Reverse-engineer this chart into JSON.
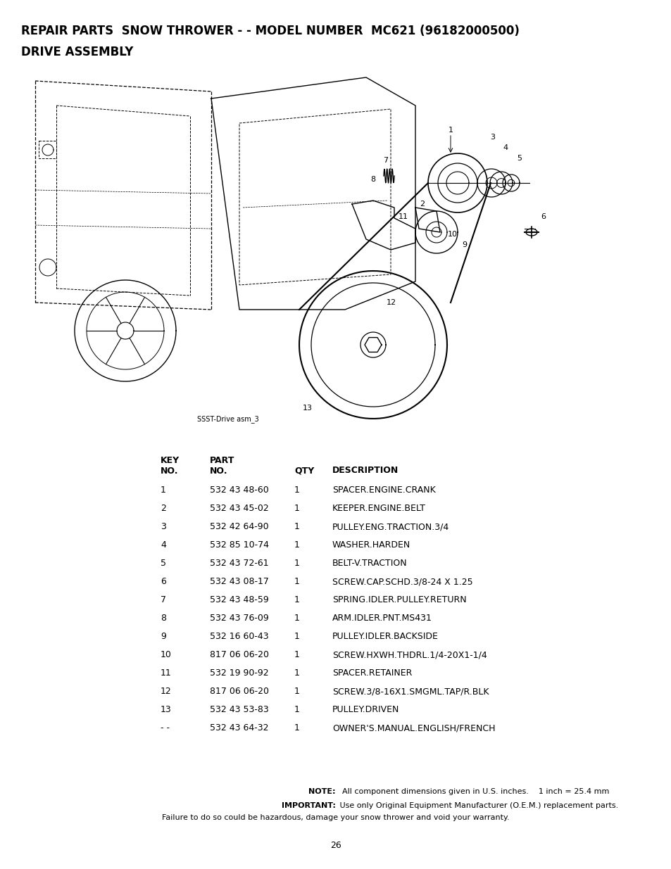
{
  "title_line1": "REPAIR PARTS  SNOW THROWER - - MODEL NUMBER  MC621 (96182000500)",
  "title_line2": "DRIVE ASSEMBLY",
  "page_number": "26",
  "diagram_label": "SSST-Drive asm_3",
  "table_rows": [
    [
      "1",
      "532 43 48-60",
      "1",
      "SPACER.ENGINE.CRANK"
    ],
    [
      "2",
      "532 43 45-02",
      "1",
      "KEEPER.ENGINE.BELT"
    ],
    [
      "3",
      "532 42 64-90",
      "1",
      "PULLEY.ENG.TRACTION.3/4"
    ],
    [
      "4",
      "532 85 10-74",
      "1",
      "WASHER.HARDEN"
    ],
    [
      "5",
      "532 43 72-61",
      "1",
      "BELT-V.TRACTION"
    ],
    [
      "6",
      "532 43 08-17",
      "1",
      "SCREW.CAP.SCHD.3/8-24 X 1.25"
    ],
    [
      "7",
      "532 43 48-59",
      "1",
      "SPRING.IDLER.PULLEY.RETURN"
    ],
    [
      "8",
      "532 43 76-09",
      "1",
      "ARM.IDLER.PNT.MS431"
    ],
    [
      "9",
      "532 16 60-43",
      "1",
      "PULLEY.IDLER.BACKSIDE"
    ],
    [
      "10",
      "817 06 06-20",
      "1",
      "SCREW.HXWH.THDRL.1/4-20X1-1/4"
    ],
    [
      "11",
      "532 19 90-92",
      "1",
      "SPACER.RETAINER"
    ],
    [
      "12",
      "817 06 06-20",
      "1",
      "SCREW.3/8-16X1.SMGML.TAP/R.BLK"
    ],
    [
      "13",
      "532 43 53-83",
      "1",
      "PULLEY.DRIVEN"
    ],
    [
      "- -",
      "532 43 64-32",
      "1",
      "OWNER'S.MANUAL.ENGLISH/FRENCH"
    ]
  ],
  "note_bold1": "NOTE:",
  "note_rest1": "  All component dimensions given in U.S. inches.    1 inch = 25.4 mm",
  "note_bold2": "IMPORTANT:",
  "note_rest2": " Use only Original Equipment Manufacturer (O.E.M.) replacement parts.",
  "note_line3": "Failure to do so could be hazardous, damage your snow thrower and void your warranty.",
  "bg_color": "#ffffff",
  "text_color": "#000000",
  "title_fontsize": 12,
  "table_fontsize": 9,
  "note_fontsize": 8,
  "header_fontsize": 9
}
